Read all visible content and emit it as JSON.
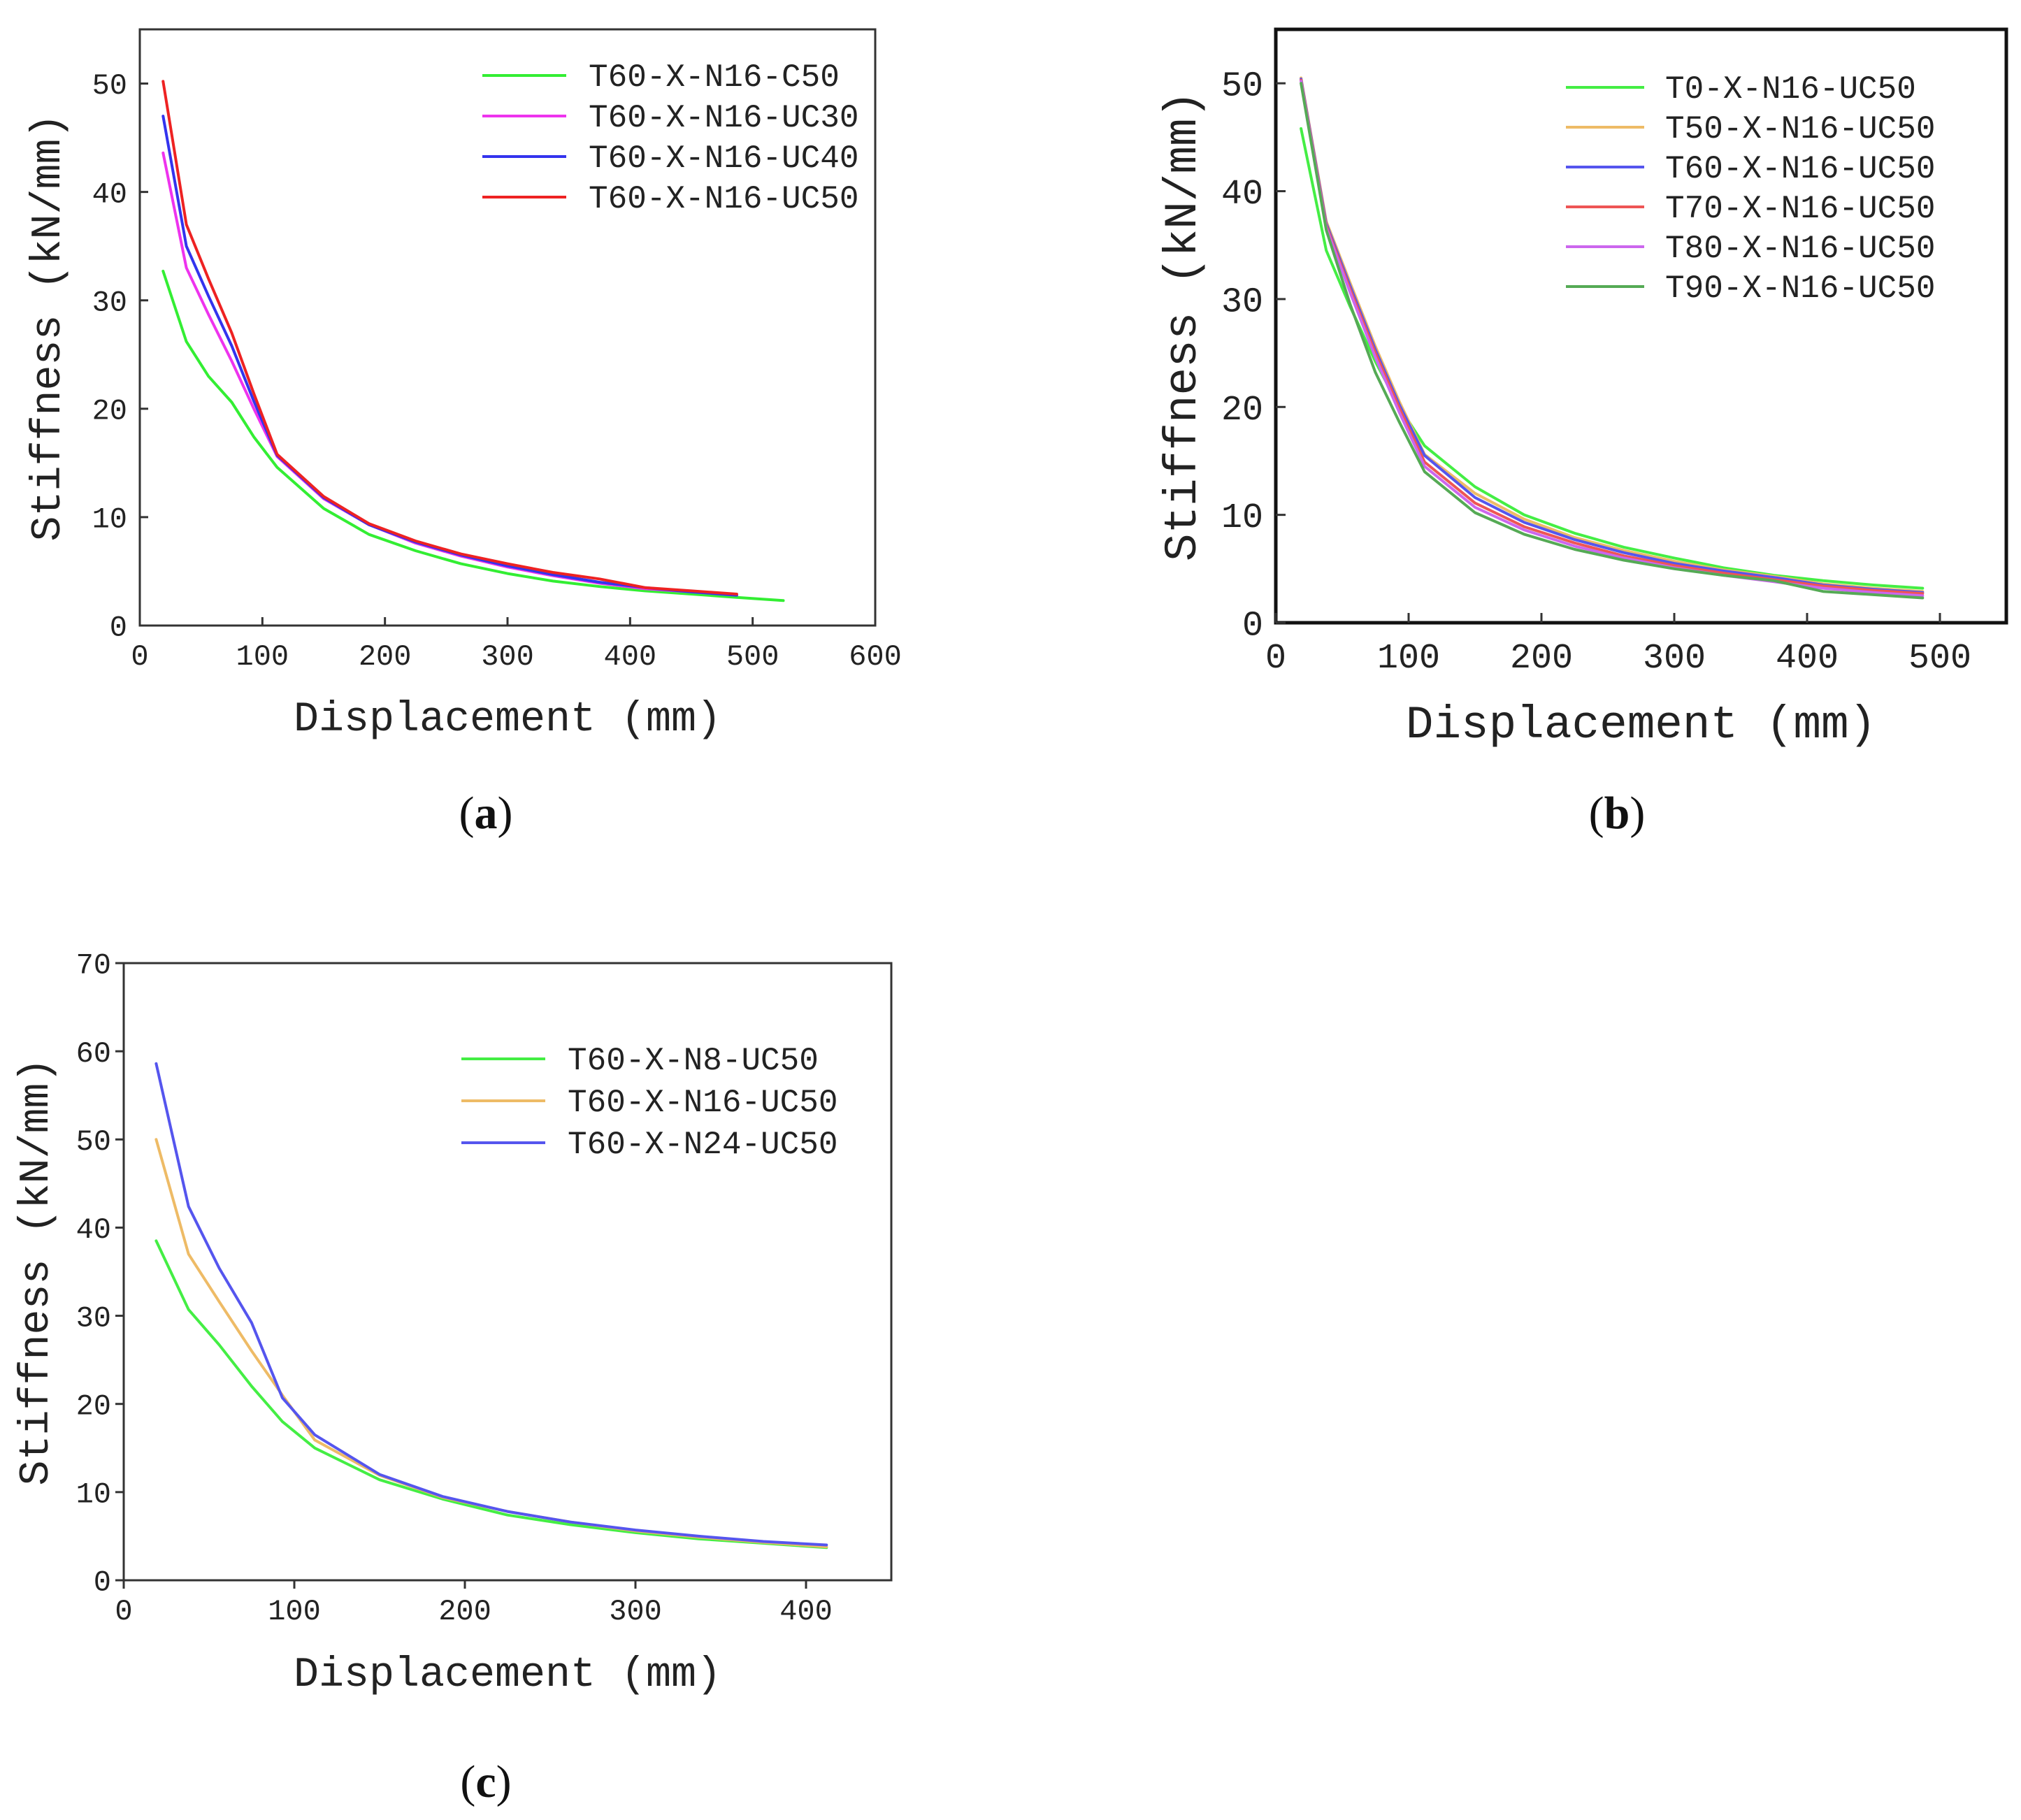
{
  "figure": {
    "panel_labels": [
      {
        "open": "(",
        "letter": "a",
        "close": ")"
      },
      {
        "open": "(",
        "letter": "b",
        "close": ")"
      },
      {
        "open": "(",
        "letter": "c",
        "close": ")"
      }
    ]
  },
  "chart_data": [
    {
      "id": "a",
      "type": "line",
      "xlabel": "Displacement (mm)",
      "ylabel": "Stiffness (kN/mm)",
      "xlim": [
        0,
        600
      ],
      "ylim": [
        0,
        55
      ],
      "xticks": [
        0,
        100,
        200,
        300,
        400,
        500,
        600
      ],
      "yticks": [
        0,
        10,
        20,
        30,
        40,
        50
      ],
      "legend_position": "top-right",
      "series": [
        {
          "name": "T60-X-N16-C50",
          "color": "#33ee33",
          "x": [
            19,
            38,
            56,
            75,
            93,
            112,
            150,
            187,
            225,
            262,
            300,
            337,
            375,
            412,
            450,
            487,
            525
          ],
          "y": [
            32.7,
            26.2,
            23.0,
            20.6,
            17.4,
            14.6,
            10.8,
            8.4,
            6.9,
            5.7,
            4.8,
            4.1,
            3.6,
            3.2,
            2.9,
            2.6,
            2.3
          ]
        },
        {
          "name": "T60-X-N16-UC30",
          "color": "#ee33ee",
          "x": [
            19,
            38,
            56,
            75,
            93,
            112,
            150,
            187,
            225,
            262,
            300,
            337,
            375,
            412,
            450,
            487
          ],
          "y": [
            43.6,
            33.0,
            28.7,
            24.4,
            20.0,
            15.6,
            11.7,
            9.3,
            7.6,
            6.4,
            5.4,
            4.6,
            3.9,
            3.4,
            3.1,
            2.8
          ]
        },
        {
          "name": "T60-X-N16-UC40",
          "color": "#3333ee",
          "x": [
            19,
            38,
            56,
            75,
            93,
            112,
            150,
            187,
            225,
            262,
            300,
            337,
            375,
            412,
            450,
            487
          ],
          "y": [
            47.0,
            35.0,
            30.4,
            25.8,
            20.7,
            15.7,
            11.8,
            9.3,
            7.7,
            6.5,
            5.5,
            4.7,
            4.0,
            3.5,
            3.1,
            2.8
          ]
        },
        {
          "name": "T60-X-N16-UC50",
          "color": "#ee2222",
          "x": [
            19,
            38,
            56,
            75,
            93,
            112,
            150,
            187,
            225,
            262,
            300,
            337,
            375,
            412,
            450,
            487
          ],
          "y": [
            50.2,
            37.0,
            32.0,
            27.0,
            21.4,
            15.8,
            11.9,
            9.4,
            7.8,
            6.6,
            5.7,
            4.9,
            4.3,
            3.5,
            3.2,
            2.9
          ]
        }
      ]
    },
    {
      "id": "b",
      "type": "line",
      "xlabel": "Displacement (mm)",
      "ylabel": "Stiffness (kN/mm)",
      "xlim": [
        0,
        550
      ],
      "ylim": [
        0,
        55
      ],
      "xticks": [
        0,
        100,
        200,
        300,
        400,
        500
      ],
      "yticks": [
        0,
        10,
        20,
        30,
        40,
        50
      ],
      "legend_position": "top-right",
      "series": [
        {
          "name": "T0-X-N16-UC50",
          "color": "#44ee44",
          "x": [
            19,
            38,
            56,
            75,
            93,
            112,
            150,
            187,
            225,
            262,
            300,
            337,
            375,
            412,
            450,
            487
          ],
          "y": [
            45.8,
            34.5,
            29.3,
            24.2,
            20.0,
            16.4,
            12.6,
            10.0,
            8.3,
            7.0,
            6.0,
            5.1,
            4.4,
            3.9,
            3.5,
            3.2
          ]
        },
        {
          "name": "T50-X-N16-UC50",
          "color": "#eebb66",
          "x": [
            19,
            38,
            56,
            75,
            93,
            112,
            150,
            187,
            225,
            262,
            300,
            337,
            375,
            412,
            450,
            487
          ],
          "y": [
            50.5,
            37.2,
            31.5,
            25.6,
            20.5,
            15.6,
            12.0,
            9.6,
            7.9,
            6.7,
            5.7,
            4.9,
            4.3,
            3.6,
            3.2,
            2.9
          ]
        },
        {
          "name": "T60-X-N16-UC50",
          "color": "#5555ee",
          "x": [
            19,
            38,
            56,
            75,
            93,
            112,
            150,
            187,
            225,
            262,
            300,
            337,
            375,
            412,
            450,
            487
          ],
          "y": [
            50.4,
            37.0,
            31.2,
            25.3,
            20.2,
            15.5,
            11.6,
            9.3,
            7.7,
            6.5,
            5.5,
            4.8,
            4.2,
            3.5,
            3.1,
            2.8
          ]
        },
        {
          "name": "T70-X-N16-UC50",
          "color": "#ee5555",
          "x": [
            19,
            38,
            56,
            75,
            93,
            112,
            150,
            187,
            225,
            262,
            300,
            337,
            375,
            412,
            450,
            487
          ],
          "y": [
            50.3,
            36.8,
            30.9,
            25.0,
            19.9,
            14.9,
            11.1,
            8.9,
            7.4,
            6.2,
            5.3,
            4.6,
            4.0,
            3.4,
            3.0,
            2.7
          ]
        },
        {
          "name": "T80-X-N16-UC50",
          "color": "#cc66ee",
          "x": [
            19,
            38,
            56,
            75,
            93,
            112,
            150,
            187,
            225,
            262,
            300,
            337,
            375,
            412,
            450,
            487
          ],
          "y": [
            50.2,
            36.6,
            30.6,
            24.6,
            19.5,
            14.5,
            10.7,
            8.6,
            7.1,
            6.0,
            5.1,
            4.4,
            3.8,
            3.2,
            2.8,
            2.5
          ]
        },
        {
          "name": "T90-X-N16-UC50",
          "color": "#55aa55",
          "x": [
            19,
            38,
            56,
            75,
            93,
            112,
            150,
            187,
            225,
            262,
            300,
            337,
            375,
            412,
            450,
            487
          ],
          "y": [
            50.0,
            36.4,
            29.5,
            23.2,
            18.6,
            14.0,
            10.2,
            8.2,
            6.8,
            5.8,
            5.0,
            4.4,
            3.9,
            2.9,
            2.6,
            2.3
          ]
        }
      ]
    },
    {
      "id": "c",
      "type": "line",
      "xlabel": "Displacement (mm)",
      "ylabel": "Stiffness (kN/mm)",
      "xlim": [
        0,
        450
      ],
      "ylim": [
        0,
        70
      ],
      "xticks": [
        0,
        100,
        200,
        300,
        400
      ],
      "yticks": [
        0,
        10,
        20,
        30,
        40,
        50,
        60,
        70
      ],
      "legend_position": "top-right",
      "series": [
        {
          "name": "T60-X-N8-UC50",
          "color": "#44ee44",
          "x": [
            19,
            38,
            56,
            75,
            93,
            112,
            150,
            187,
            225,
            262,
            300,
            337,
            375,
            412
          ],
          "y": [
            38.5,
            30.7,
            26.7,
            22.0,
            18.0,
            15.0,
            11.4,
            9.2,
            7.4,
            6.3,
            5.4,
            4.7,
            4.2,
            3.7
          ]
        },
        {
          "name": "T60-X-N16-UC50",
          "color": "#eebb66",
          "x": [
            19,
            38,
            56,
            75,
            93,
            112,
            150,
            187,
            225,
            262,
            300,
            337,
            375,
            412
          ],
          "y": [
            50.0,
            37.0,
            31.6,
            26.0,
            21.0,
            15.9,
            11.9,
            9.4,
            7.8,
            6.6,
            5.6,
            4.9,
            4.3,
            3.8
          ]
        },
        {
          "name": "T60-X-N24-UC50",
          "color": "#5555ee",
          "x": [
            19,
            38,
            56,
            75,
            93,
            112,
            150,
            187,
            225,
            262,
            300,
            337,
            375,
            412
          ],
          "y": [
            58.6,
            42.4,
            35.4,
            29.2,
            20.7,
            16.5,
            12.0,
            9.5,
            7.8,
            6.6,
            5.7,
            5.0,
            4.4,
            4.0
          ]
        }
      ]
    }
  ]
}
